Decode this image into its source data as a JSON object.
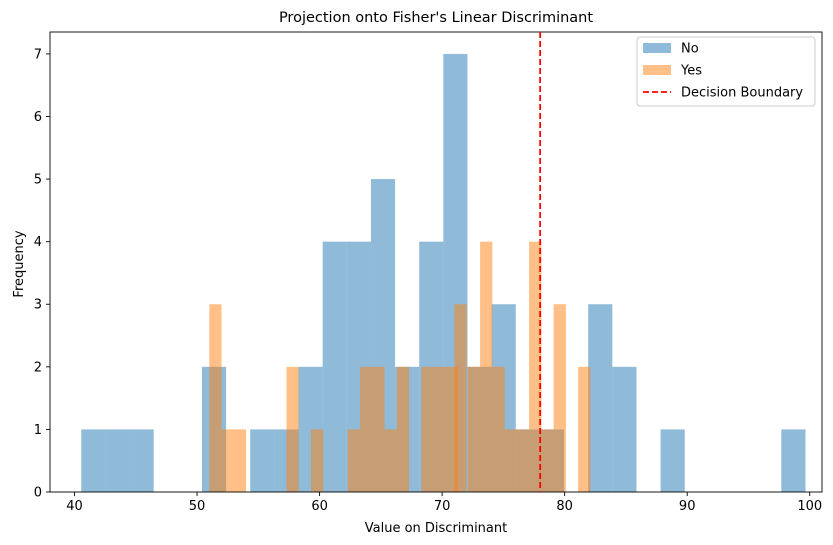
{
  "chart_data": {
    "type": "histogram",
    "title": "Projection onto Fisher's Linear Discriminant",
    "xlabel": "Value on Discriminant",
    "ylabel": "Frequency",
    "xlim": [
      38.0,
      101.0
    ],
    "ylim": [
      0,
      7.35
    ],
    "xticks": [
      40,
      50,
      60,
      70,
      80,
      90,
      100
    ],
    "yticks": [
      0,
      1,
      2,
      3,
      4,
      5,
      6,
      7
    ],
    "legend_position": "top-right",
    "grid": false,
    "series": [
      {
        "name": "No",
        "color": "#1f77b4",
        "alpha": 0.5,
        "bin_width": 1.97,
        "bins": [
          {
            "x0": 40.55,
            "count": 1
          },
          {
            "x0": 42.52,
            "count": 1
          },
          {
            "x0": 44.49,
            "count": 1
          },
          {
            "x0": 50.4,
            "count": 2
          },
          {
            "x0": 54.34,
            "count": 1
          },
          {
            "x0": 56.31,
            "count": 1
          },
          {
            "x0": 58.28,
            "count": 2
          },
          {
            "x0": 60.25,
            "count": 4
          },
          {
            "x0": 62.22,
            "count": 4
          },
          {
            "x0": 64.19,
            "count": 5
          },
          {
            "x0": 66.16,
            "count": 2
          },
          {
            "x0": 68.13,
            "count": 4
          },
          {
            "x0": 70.1,
            "count": 7
          },
          {
            "x0": 72.07,
            "count": 2
          },
          {
            "x0": 74.04,
            "count": 3
          },
          {
            "x0": 76.01,
            "count": 1
          },
          {
            "x0": 77.98,
            "count": 1
          },
          {
            "x0": 81.92,
            "count": 3
          },
          {
            "x0": 83.89,
            "count": 2
          },
          {
            "x0": 87.83,
            "count": 1
          },
          {
            "x0": 97.68,
            "count": 1
          }
        ]
      },
      {
        "name": "Yes",
        "color": "#ff7f0e",
        "alpha": 0.5,
        "bin_width": 1.0,
        "bins": [
          {
            "x0": 51.0,
            "count": 3
          },
          {
            "x0": 52.0,
            "count": 1
          },
          {
            "x0": 53.0,
            "count": 1
          },
          {
            "x0": 57.3,
            "count": 2
          },
          {
            "x0": 59.3,
            "count": 1
          },
          {
            "x0": 62.3,
            "count": 1
          },
          {
            "x0": 63.3,
            "count": 2
          },
          {
            "x0": 64.3,
            "count": 2
          },
          {
            "x0": 65.3,
            "count": 1
          },
          {
            "x0": 66.3,
            "count": 2
          },
          {
            "x0": 68.3,
            "count": 2
          },
          {
            "x0": 69.3,
            "count": 2
          },
          {
            "x0": 70.3,
            "count": 2
          },
          {
            "x0": 71.0,
            "count": 3
          },
          {
            "x0": 72.1,
            "count": 2
          },
          {
            "x0": 73.1,
            "count": 4
          },
          {
            "x0": 74.1,
            "count": 2
          },
          {
            "x0": 75.1,
            "count": 1
          },
          {
            "x0": 76.1,
            "count": 1
          },
          {
            "x0": 77.1,
            "count": 4
          },
          {
            "x0": 78.1,
            "count": 1
          },
          {
            "x0": 79.1,
            "count": 3
          },
          {
            "x0": 81.1,
            "count": 2
          }
        ]
      }
    ],
    "reference_line": {
      "name": "Decision Boundary",
      "x": 78.0,
      "color": "#ff0000",
      "style": "dashed"
    }
  }
}
